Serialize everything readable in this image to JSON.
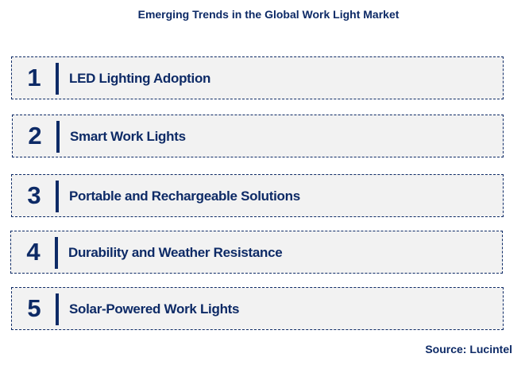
{
  "title": "Emerging Trends in the Global Work Light Market",
  "items": [
    {
      "n": "1",
      "label": "LED Lighting Adoption"
    },
    {
      "n": "2",
      "label": "Smart Work Lights"
    },
    {
      "n": "3",
      "label": "Portable and Rechargeable Solutions"
    },
    {
      "n": "4",
      "label": "Durability and Weather Resistance"
    },
    {
      "n": "5",
      "label": "Solar-Powered Work Lights"
    }
  ],
  "source": "Source: Lucintel",
  "colors": {
    "accent": "#0d2a66",
    "box": "#f2f2f2"
  }
}
